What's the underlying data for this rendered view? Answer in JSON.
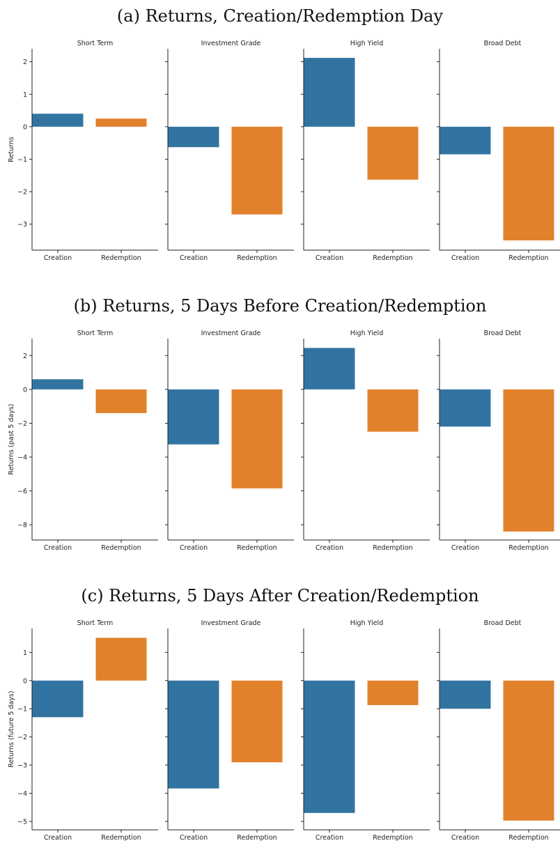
{
  "colors": {
    "creation": "#3274a1",
    "redemption": "#e1812c",
    "axis": "#222222"
  },
  "chart_data": [
    {
      "type": "bar",
      "title": "(a) Returns, Creation/Redemption Day",
      "ylabel": "Returns",
      "ylim": [
        -3.8,
        2.4
      ],
      "yticks": [
        2,
        1,
        0,
        -1,
        -2,
        -3
      ],
      "yticklabels": [
        "2",
        "1",
        "0",
        "−1",
        "−2",
        "−3"
      ],
      "categories": [
        "Creation",
        "Redemption"
      ],
      "panels": [
        {
          "title": "Short Term",
          "values": [
            0.4,
            0.25
          ]
        },
        {
          "title": "Investment Grade",
          "values": [
            -0.63,
            -2.7
          ]
        },
        {
          "title": "High Yield",
          "values": [
            2.12,
            -1.63
          ]
        },
        {
          "title": "Broad Debt",
          "values": [
            -0.85,
            -3.5
          ]
        }
      ]
    },
    {
      "type": "bar",
      "title": "(b) Returns, 5 Days Before Creation/Redemption",
      "ylabel": "Returns (past 5 days)",
      "ylim": [
        -8.9,
        3.0
      ],
      "yticks": [
        2,
        0,
        -2,
        -4,
        -6,
        -8
      ],
      "yticklabels": [
        "2",
        "0",
        "−2",
        "−4",
        "−6",
        "−8"
      ],
      "categories": [
        "Creation",
        "Redemption"
      ],
      "panels": [
        {
          "title": "Short Term",
          "values": [
            0.6,
            -1.4
          ]
        },
        {
          "title": "Investment Grade",
          "values": [
            -3.25,
            -5.85
          ]
        },
        {
          "title": "High Yield",
          "values": [
            2.45,
            -2.5
          ]
        },
        {
          "title": "Broad Debt",
          "values": [
            -2.2,
            -8.4
          ]
        }
      ]
    },
    {
      "type": "bar",
      "title": "(c) Returns, 5 Days After Creation/Redemption",
      "ylabel": "Returns (future 5 days)",
      "ylim": [
        -5.3,
        1.85
      ],
      "yticks": [
        1,
        0,
        -1,
        -2,
        -3,
        -4,
        -5
      ],
      "yticklabels": [
        "1",
        "0",
        "−1",
        "−2",
        "−3",
        "−4",
        "−5"
      ],
      "categories": [
        "Creation",
        "Redemption"
      ],
      "panels": [
        {
          "title": "Short Term",
          "values": [
            -1.3,
            1.52
          ]
        },
        {
          "title": "Investment Grade",
          "values": [
            -3.83,
            -2.9
          ]
        },
        {
          "title": "High Yield",
          "values": [
            -4.7,
            -0.87
          ]
        },
        {
          "title": "Broad Debt",
          "values": [
            -1.0,
            -4.97
          ]
        }
      ]
    }
  ]
}
